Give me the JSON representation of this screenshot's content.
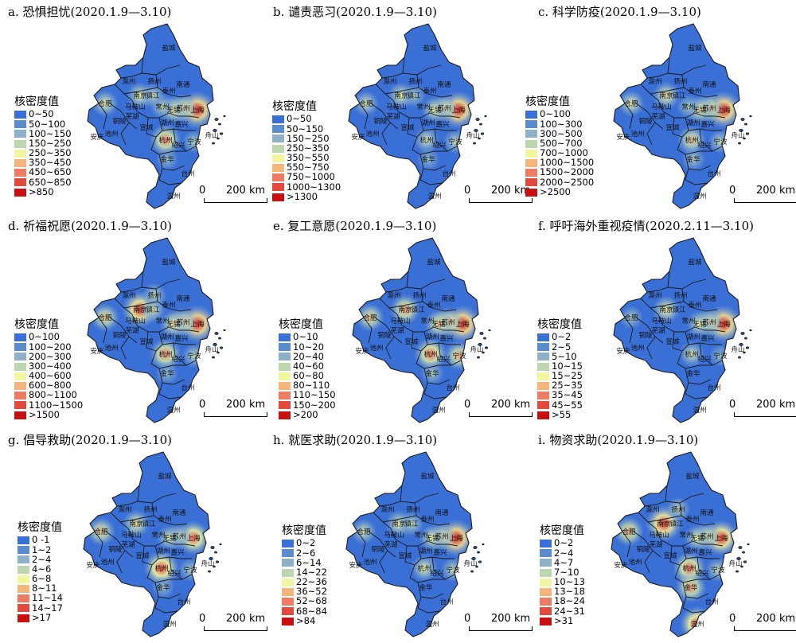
{
  "legend_title": "核密度值",
  "scale": {
    "zero": "0",
    "distance": "200 km"
  },
  "place_names": [
    "盐城",
    "滁州",
    "扬州",
    "南通",
    "合肥",
    "南京",
    "镇江",
    "泰州",
    "常州",
    "无锡",
    "苏州",
    "上海",
    "马鞍山",
    "芜湖",
    "铜陵",
    "安庆",
    "池州",
    "宣城",
    "湖州",
    "嘉兴",
    "杭州",
    "绍兴",
    "宁波",
    "舟山",
    "金华",
    "台州",
    "温州"
  ],
  "colors": {
    "ramp9": [
      "#3a6fd6",
      "#5a8cd0",
      "#8fb1c8",
      "#bdd6b0",
      "#f3f6a0",
      "#f5b47a",
      "#ee7b63",
      "#e24a3d",
      "#c81010"
    ],
    "ramp8": [
      "#3a6fd6",
      "#5a8cd0",
      "#8fb1c8",
      "#bdd6b0",
      "#f3f6a0",
      "#f5b47a",
      "#e9624f",
      "#c81010"
    ],
    "boundary": "#1a1a1a",
    "base": "#3a6fd6"
  },
  "panels": [
    {
      "title": "a. 恐惧担忧(2020.1.9—3.10)",
      "legend": [
        "0~50",
        "50~100",
        "100~150",
        "150~250",
        "250~350",
        "350~450",
        "450~650",
        "650~850",
        ">850"
      ],
      "hot": [
        [
          "shanghai",
          1.0
        ],
        [
          "suzhou",
          0.6
        ],
        [
          "wuxi",
          0.55
        ],
        [
          "hefei",
          0.5
        ],
        [
          "nanjing",
          0.5
        ],
        [
          "hangzhou",
          0.75
        ],
        [
          "changzhou",
          0.4
        ],
        [
          "ningbo",
          0.35
        ],
        [
          "jinhua",
          0.3
        ],
        [
          "zhenjiang",
          0.4
        ]
      ]
    },
    {
      "title": "b. 谴责恶习(2020.1.9—3.10)",
      "legend": [
        "0~50",
        "50~150",
        "150~250",
        "250~350",
        "350~550",
        "550~750",
        "750~1000",
        "1000~1300",
        ">1300"
      ],
      "hot": [
        [
          "shanghai",
          1.0
        ],
        [
          "suzhou",
          0.55
        ],
        [
          "wuxi",
          0.5
        ],
        [
          "hefei",
          0.45
        ],
        [
          "nanjing",
          0.5
        ],
        [
          "hangzhou",
          0.45
        ],
        [
          "ningbo",
          0.4
        ],
        [
          "jinhua",
          0.3
        ],
        [
          "zhenjiang",
          0.35
        ]
      ]
    },
    {
      "title": "c. 科学防疫(2020.1.9—3.10)",
      "legend": [
        "0~100",
        "100~300",
        "300~500",
        "500~700",
        "700~1000",
        "1000~1500",
        "1500~2000",
        "2000~2500",
        ">2500"
      ],
      "hot": [
        [
          "shanghai",
          1.0
        ],
        [
          "suzhou",
          0.6
        ],
        [
          "wuxi",
          0.55
        ],
        [
          "hefei",
          0.5
        ],
        [
          "nanjing",
          0.55
        ],
        [
          "hangzhou",
          0.6
        ],
        [
          "ningbo",
          0.4
        ],
        [
          "jinhua",
          0.35
        ],
        [
          "changzhou",
          0.35
        ]
      ]
    },
    {
      "title": "d. 祈福祝愿(2020.1.9—3.10)",
      "legend": [
        "0~100",
        "100~200",
        "200~300",
        "300~400",
        "400~600",
        "600~800",
        "800~1100",
        "1100~1500",
        ">1500"
      ],
      "hot": [
        [
          "shanghai",
          1.0
        ],
        [
          "nanjing",
          0.95
        ],
        [
          "hefei",
          0.6
        ],
        [
          "suzhou",
          0.6
        ],
        [
          "wuxi",
          0.55
        ],
        [
          "hangzhou",
          0.75
        ],
        [
          "ningbo",
          0.4
        ],
        [
          "zhenjiang",
          0.45
        ],
        [
          "yangzhou",
          0.4
        ],
        [
          "jinhua",
          0.3
        ]
      ]
    },
    {
      "title": "e. 复工意愿(2020.1.9—3.10)",
      "legend": [
        "0~10",
        "10~20",
        "20~40",
        "40~60",
        "60~80",
        "80~110",
        "110~150",
        "150~200",
        ">200"
      ],
      "hot": [
        [
          "shanghai",
          1.0
        ],
        [
          "hefei",
          0.6
        ],
        [
          "nanjing",
          0.7
        ],
        [
          "suzhou",
          0.65
        ],
        [
          "wuxi",
          0.6
        ],
        [
          "hangzhou",
          0.8
        ],
        [
          "ningbo",
          0.65
        ],
        [
          "jinhua",
          0.35
        ]
      ]
    },
    {
      "title": "f. 呼吁海外重视疫情(2020.2.11—3.10)",
      "legend": [
        "0~2",
        "2~5",
        "5~10",
        "10~15",
        "15~25",
        "25~35",
        "35~45",
        "45~55",
        ">55"
      ],
      "hot": [
        [
          "shanghai",
          1.0
        ],
        [
          "nanjing",
          0.55
        ],
        [
          "suzhou",
          0.55
        ],
        [
          "wuxi",
          0.5
        ],
        [
          "hangzhou",
          0.45
        ],
        [
          "hefei",
          0.35
        ],
        [
          "ningbo",
          0.3
        ]
      ]
    },
    {
      "title": "g. 倡导救助(2020.1.9—3.10)",
      "legend": [
        "0 -1",
        "1~2",
        "2~4",
        "4~6",
        "6~8",
        "8~11",
        "11~14",
        "14~17",
        ">17"
      ],
      "hot": [
        [
          "shanghai",
          0.85
        ],
        [
          "hangzhou",
          0.9
        ],
        [
          "hefei",
          0.6
        ],
        [
          "nanjing",
          0.55
        ],
        [
          "suzhou",
          0.45
        ],
        [
          "wuxi",
          0.45
        ],
        [
          "ningbo",
          0.35
        ],
        [
          "jinhua",
          0.3
        ]
      ]
    },
    {
      "title": "h. 就医求助(2020.1.9—3.10)",
      "legend": [
        "0~2",
        "2~6",
        "6~14",
        "14~22",
        "22~36",
        "36~52",
        "52~68",
        "68~84",
        ">84"
      ],
      "hot": [
        [
          "shanghai",
          1.0
        ],
        [
          "nanjing",
          0.5
        ],
        [
          "hefei",
          0.45
        ],
        [
          "suzhou",
          0.55
        ],
        [
          "wuxi",
          0.5
        ],
        [
          "hangzhou",
          0.5
        ],
        [
          "ningbo",
          0.4
        ],
        [
          "zhenjiang",
          0.4
        ]
      ]
    },
    {
      "title": "i. 物资求助(2020.1.9—3.10)",
      "legend": [
        "0~2",
        "2~4",
        "4~7",
        "7~10",
        "10~13",
        "13~18",
        "18~24",
        "24~31",
        ">31"
      ],
      "hot": [
        [
          "shanghai",
          0.95
        ],
        [
          "nanjing",
          0.95
        ],
        [
          "hefei",
          0.65
        ],
        [
          "hangzhou",
          0.8
        ],
        [
          "wenzhou",
          0.9
        ],
        [
          "jinhua",
          0.7
        ],
        [
          "suzhou",
          0.55
        ],
        [
          "wuxi",
          0.5
        ],
        [
          "ningbo",
          0.4
        ],
        [
          "yangzhou",
          0.4
        ]
      ]
    }
  ]
}
